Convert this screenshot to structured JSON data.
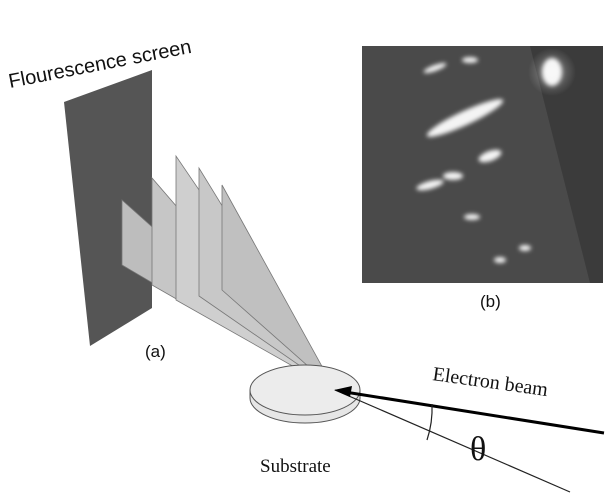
{
  "labels": {
    "screen": "Flourescence screen",
    "panel_a": "(a)",
    "panel_b": "(b)",
    "beam": "Electron beam",
    "angle": "θ",
    "substrate": "Substrate"
  }
}
